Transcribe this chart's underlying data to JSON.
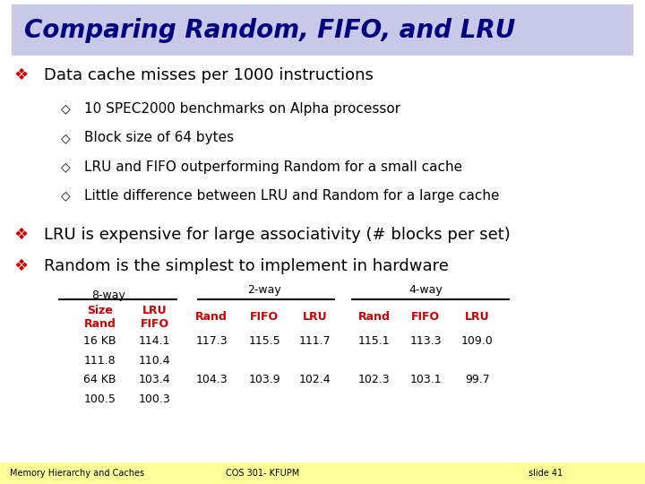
{
  "title": "Comparing Random, FIFO, and LRU",
  "title_bg": "#c8c8e8",
  "title_color": "#000080",
  "bg_color": "#ffffff",
  "bullets": [
    "Data cache misses per 1000 instructions",
    "LRU is expensive for large associativity (# blocks per set)",
    "Random is the simplest to implement in hardware"
  ],
  "sub_bullets": [
    "10 SPEC2000 benchmarks on Alpha processor",
    "Block size of 64 bytes",
    "LRU and FIFO outperforming Random for a small cache",
    "Little difference between LRU and Random for a large cache"
  ],
  "table_header_2way": "2-way",
  "table_header_4way": "4-way",
  "table_header_8way": "8-way",
  "col_headers": [
    "Size\nRand",
    "LRU\nFIFO",
    "Rand",
    "FIFO",
    "LRU",
    "Rand",
    "FIFO",
    "LRU"
  ],
  "col_header_color": "#cc0000",
  "row1_col0": "16 KB",
  "row1_col0b": "111.8",
  "row1_col1": "114.1",
  "row1_col1b": "110.4",
  "row1_data": [
    "117.3",
    "115.5",
    "111.7",
    "115.1",
    "113.3",
    "109.0"
  ],
  "row2_col0": "64 KB",
  "row2_col0b": "100.5",
  "row2_col1": "103.4",
  "row2_col1b": "100.3",
  "row2_data": [
    "104.3",
    "103.9",
    "102.4",
    "102.3",
    "103.1",
    "99.7"
  ],
  "footer_color": "#ffff99",
  "footer_left": "Memory Hierarchy and Caches",
  "footer_mid": "COS 301- KFUPM",
  "footer_right": "slide 41"
}
